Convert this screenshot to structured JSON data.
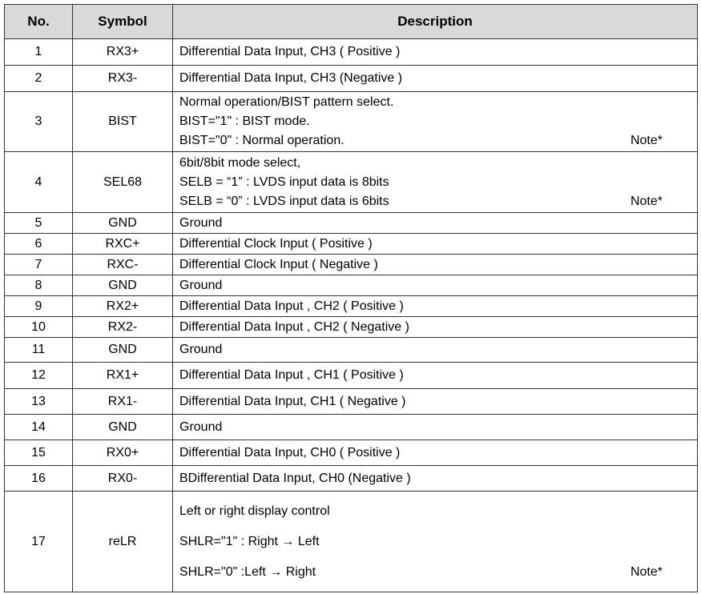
{
  "headers": {
    "no": "No.",
    "symbol": "Symbol",
    "description": "Description"
  },
  "rows": [
    {
      "no": "1",
      "symbol": "RX3+",
      "lines": [
        "Differential Data Input, CH3 ( Positive )"
      ]
    },
    {
      "no": "2",
      "symbol": "RX3-",
      "lines": [
        "Differential Data Input, CH3 (Negative )"
      ]
    },
    {
      "no": "3",
      "symbol": "BIST",
      "lines": [
        "Normal operation/BIST pattern select.",
        "BIST=\"1\" : BIST mode.",
        "BIST=\"0\" : Normal operation."
      ],
      "note": "Note*"
    },
    {
      "no": "4",
      "symbol": "SEL68",
      "lines": [
        "6bit/8bit mode select,",
        "SELB = “1” : LVDS input data is 8bits",
        "SELB = “0” : LVDS input data is 6bits"
      ],
      "note": "Note*"
    },
    {
      "no": "5",
      "symbol": "GND",
      "lines": [
        "Ground"
      ]
    },
    {
      "no": "6",
      "symbol": "RXC+",
      "lines": [
        "Differential Clock Input ( Positive )"
      ]
    },
    {
      "no": "7",
      "symbol": "RXC-",
      "lines": [
        "Differential Clock Input ( Negative )"
      ]
    },
    {
      "no": "8",
      "symbol": "GND",
      "lines": [
        "Ground"
      ]
    },
    {
      "no": "9",
      "symbol": "RX2+",
      "lines": [
        "Differential Data Input , CH2 ( Positive )"
      ]
    },
    {
      "no": "10",
      "symbol": "RX2-",
      "lines": [
        "Differential Data Input , CH2 ( Negative )"
      ]
    },
    {
      "no": "11",
      "symbol": "GND",
      "lines": [
        "Ground"
      ]
    },
    {
      "no": "12",
      "symbol": "RX1+",
      "lines": [
        "Differential Data Input , CH1 ( Positive )"
      ]
    },
    {
      "no": "13",
      "symbol": "RX1-",
      "lines": [
        "Differential Data Input, CH1 ( Negative )"
      ]
    },
    {
      "no": "14",
      "symbol": "GND",
      "lines": [
        "Ground"
      ]
    },
    {
      "no": "15",
      "symbol": "RX0+",
      "lines": [
        "Differential Data Input, CH0 ( Positive )"
      ]
    },
    {
      "no": "16",
      "symbol": "RX0-",
      "lines": [
        "BDifferential Data Input, CH0 (Negative )"
      ]
    },
    {
      "no": "17",
      "symbol": "reLR",
      "lines": [
        "Left or right display control",
        "SHLR=\"1\" : Right →  Left",
        "SHLR=\"0\" :Left  →  Right"
      ],
      "note": "Note*"
    }
  ]
}
